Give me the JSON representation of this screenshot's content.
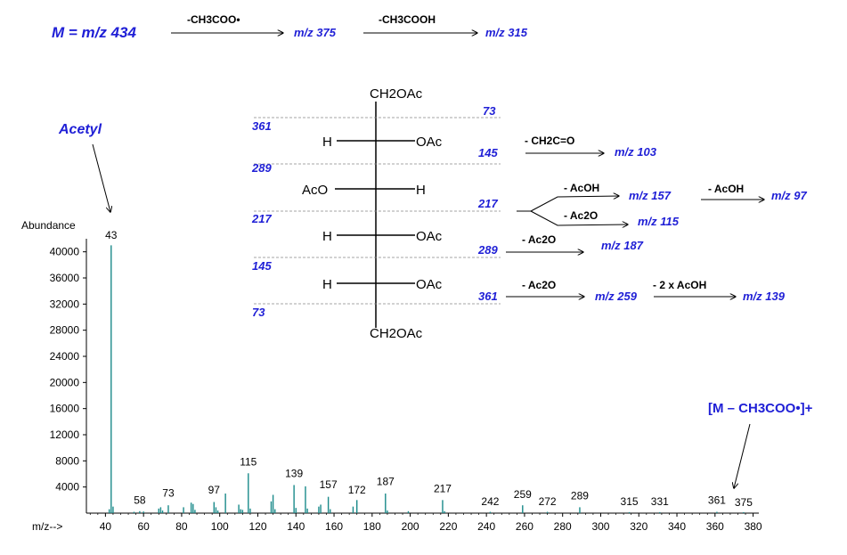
{
  "header": {
    "molecule": "M = m/z 434",
    "loss1": "-CH3COO•",
    "product1": "m/z 375",
    "loss2": "-CH3COOH",
    "product2": "m/z 315"
  },
  "annotations": {
    "acetyl": "Acetyl",
    "fragment_ion": "[M – CH3COO•]+"
  },
  "structure": {
    "top": "CH2OAc",
    "bottom": "CH2OAc",
    "rows": [
      {
        "left": "H",
        "right": "OAc"
      },
      {
        "left": "AcO",
        "right": "H"
      },
      {
        "left": "H",
        "right": "OAc"
      },
      {
        "left": "H",
        "right": "OAc"
      }
    ],
    "left_cleavage_masses": [
      "361",
      "289",
      "217",
      "145",
      "73"
    ],
    "right_cleavage_masses": [
      "73",
      "145",
      "217",
      "289",
      "361"
    ]
  },
  "fragmentation": [
    {
      "loss": "- CH2C=O",
      "product": "m/z 103"
    },
    {
      "loss": "- AcOH",
      "product": "m/z 157"
    },
    {
      "loss": "- AcOH",
      "product": "m/z 97"
    },
    {
      "loss": "- Ac2O",
      "product": "m/z 115"
    },
    {
      "loss": "- Ac2O",
      "product": "m/z 187"
    },
    {
      "loss": "- Ac2O",
      "product": "m/z 259"
    },
    {
      "loss": "- 2 x AcOH",
      "product": "m/z 139"
    }
  ],
  "colors": {
    "spectrum": "#1a8a8a",
    "annotation": "#1f1fd6",
    "text": "#000000"
  },
  "chart_data": {
    "type": "bar",
    "ylabel": "Abundance",
    "xlabel": "m/z-->",
    "xlim": [
      30,
      383
    ],
    "ylim": [
      0,
      42000
    ],
    "x_ticks": [
      40,
      60,
      80,
      100,
      120,
      140,
      160,
      180,
      200,
      220,
      240,
      260,
      280,
      300,
      320,
      340,
      360,
      380
    ],
    "y_ticks": [
      4000,
      8000,
      12000,
      16000,
      20000,
      24000,
      28000,
      32000,
      36000,
      40000
    ],
    "grid": false,
    "peaks": [
      {
        "mz": 42,
        "abundance": 600
      },
      {
        "mz": 43,
        "abundance": 41000
      },
      {
        "mz": 44,
        "abundance": 1000
      },
      {
        "mz": 55,
        "abundance": 200
      },
      {
        "mz": 58,
        "abundance": 300
      },
      {
        "mz": 60,
        "abundance": 250
      },
      {
        "mz": 68,
        "abundance": 700
      },
      {
        "mz": 69,
        "abundance": 900
      },
      {
        "mz": 70,
        "abundance": 400
      },
      {
        "mz": 73,
        "abundance": 1200
      },
      {
        "mz": 81,
        "abundance": 900
      },
      {
        "mz": 85,
        "abundance": 1600
      },
      {
        "mz": 86,
        "abundance": 1400
      },
      {
        "mz": 87,
        "abundance": 500
      },
      {
        "mz": 97,
        "abundance": 1700
      },
      {
        "mz": 98,
        "abundance": 900
      },
      {
        "mz": 99,
        "abundance": 400
      },
      {
        "mz": 103,
        "abundance": 3000
      },
      {
        "mz": 110,
        "abundance": 1300
      },
      {
        "mz": 111,
        "abundance": 600
      },
      {
        "mz": 112,
        "abundance": 500
      },
      {
        "mz": 115,
        "abundance": 6100
      },
      {
        "mz": 116,
        "abundance": 700
      },
      {
        "mz": 127,
        "abundance": 1800
      },
      {
        "mz": 128,
        "abundance": 2800
      },
      {
        "mz": 129,
        "abundance": 600
      },
      {
        "mz": 139,
        "abundance": 4300
      },
      {
        "mz": 140,
        "abundance": 800
      },
      {
        "mz": 145,
        "abundance": 4100
      },
      {
        "mz": 146,
        "abundance": 700
      },
      {
        "mz": 152,
        "abundance": 1000
      },
      {
        "mz": 153,
        "abundance": 1300
      },
      {
        "mz": 157,
        "abundance": 2500
      },
      {
        "mz": 158,
        "abundance": 600
      },
      {
        "mz": 170,
        "abundance": 1000
      },
      {
        "mz": 172,
        "abundance": 2000
      },
      {
        "mz": 187,
        "abundance": 3000
      },
      {
        "mz": 188,
        "abundance": 400
      },
      {
        "mz": 199,
        "abundance": 300
      },
      {
        "mz": 217,
        "abundance": 2000
      },
      {
        "mz": 218,
        "abundance": 300
      },
      {
        "mz": 242,
        "abundance": 200
      },
      {
        "mz": 259,
        "abundance": 1200
      },
      {
        "mz": 272,
        "abundance": 200
      },
      {
        "mz": 289,
        "abundance": 900
      },
      {
        "mz": 315,
        "abundance": 150
      },
      {
        "mz": 331,
        "abundance": 150
      },
      {
        "mz": 361,
        "abundance": 200
      },
      {
        "mz": 375,
        "abundance": 150
      }
    ],
    "labels": [
      {
        "mz": 43,
        "text": "43",
        "at": 42000
      },
      {
        "mz": 58,
        "text": "58",
        "at": 1400
      },
      {
        "mz": 73,
        "text": "73",
        "at": 2500
      },
      {
        "mz": 97,
        "text": "97",
        "at": 3000
      },
      {
        "mz": 115,
        "text": "115",
        "at": 7300
      },
      {
        "mz": 139,
        "text": "139",
        "at": 5500
      },
      {
        "mz": 157,
        "text": "157",
        "at": 3800
      },
      {
        "mz": 172,
        "text": "172",
        "at": 3000
      },
      {
        "mz": 187,
        "text": "187",
        "at": 4300
      },
      {
        "mz": 217,
        "text": "217",
        "at": 3200
      },
      {
        "mz": 242,
        "text": "242",
        "at": 1200
      },
      {
        "mz": 259,
        "text": "259",
        "at": 2300
      },
      {
        "mz": 272,
        "text": "272",
        "at": 1200
      },
      {
        "mz": 289,
        "text": "289",
        "at": 2100
      },
      {
        "mz": 315,
        "text": "315",
        "at": 1200
      },
      {
        "mz": 331,
        "text": "331",
        "at": 1200
      },
      {
        "mz": 361,
        "text": "361",
        "at": 1400
      },
      {
        "mz": 375,
        "text": "375",
        "at": 1100
      }
    ]
  }
}
